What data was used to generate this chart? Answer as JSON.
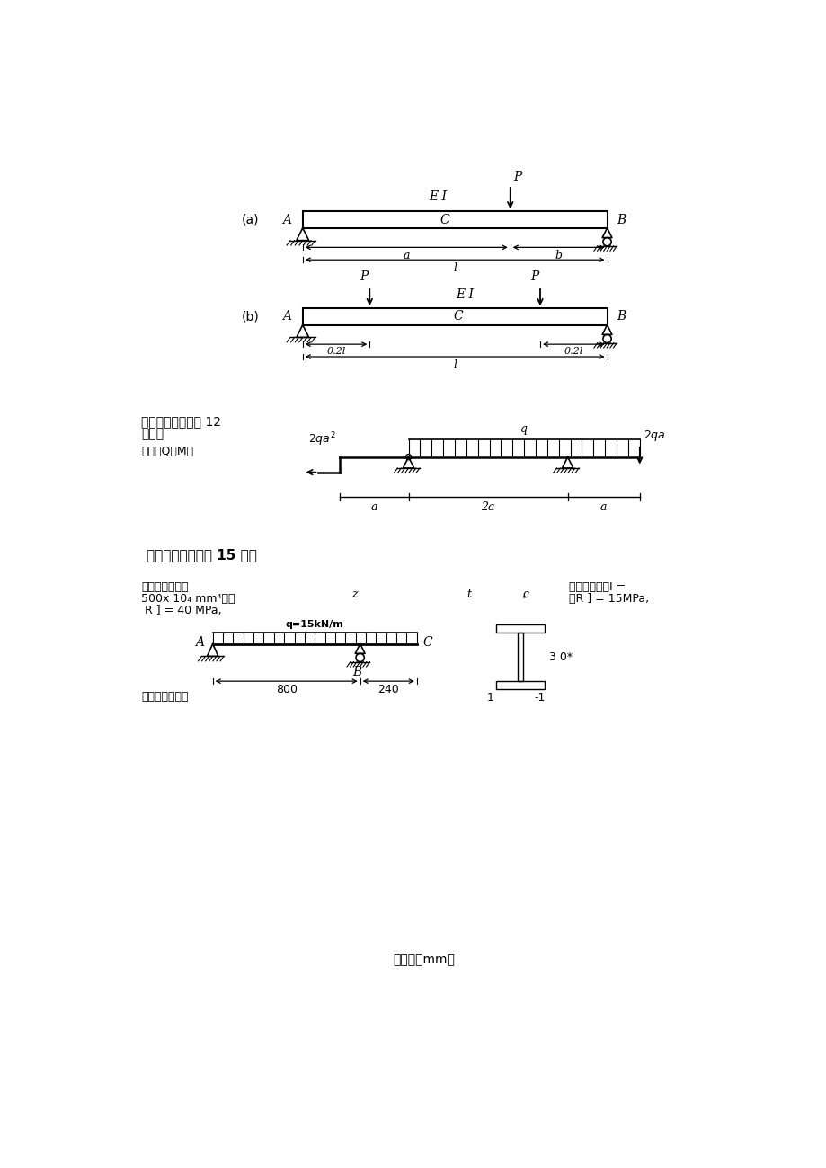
{
  "bg_color": "#ffffff",
  "beam_a_label": "(a)",
  "beam_b_label": "(b)",
  "s3_title_line1": "三、作图题（本题 12",
  "s3_title_line2": "分）：",
  "s3_sub": "作梁的Q、M图",
  "s4_title": "四、计算题（本题 15 分）",
  "s4_l1": "外伸梁截面及受",
  "s4_l2": "500x 10₄ mm⁴材料",
  "s4_l3": " R ] = 40 MPa,",
  "s4_r1": "载如图，已知I =",
  "s4_r2": "的R ] = 15MPa,",
  "s4_z": "z",
  "s4_t": "t",
  "s4_c": "c",
  "verify": "核该梁的强度。",
  "footer": "（单位：mm）",
  "q_label": "q=15kN/m",
  "dim_800": "800",
  "dim_240": "240",
  "dim_30": "3 0*"
}
